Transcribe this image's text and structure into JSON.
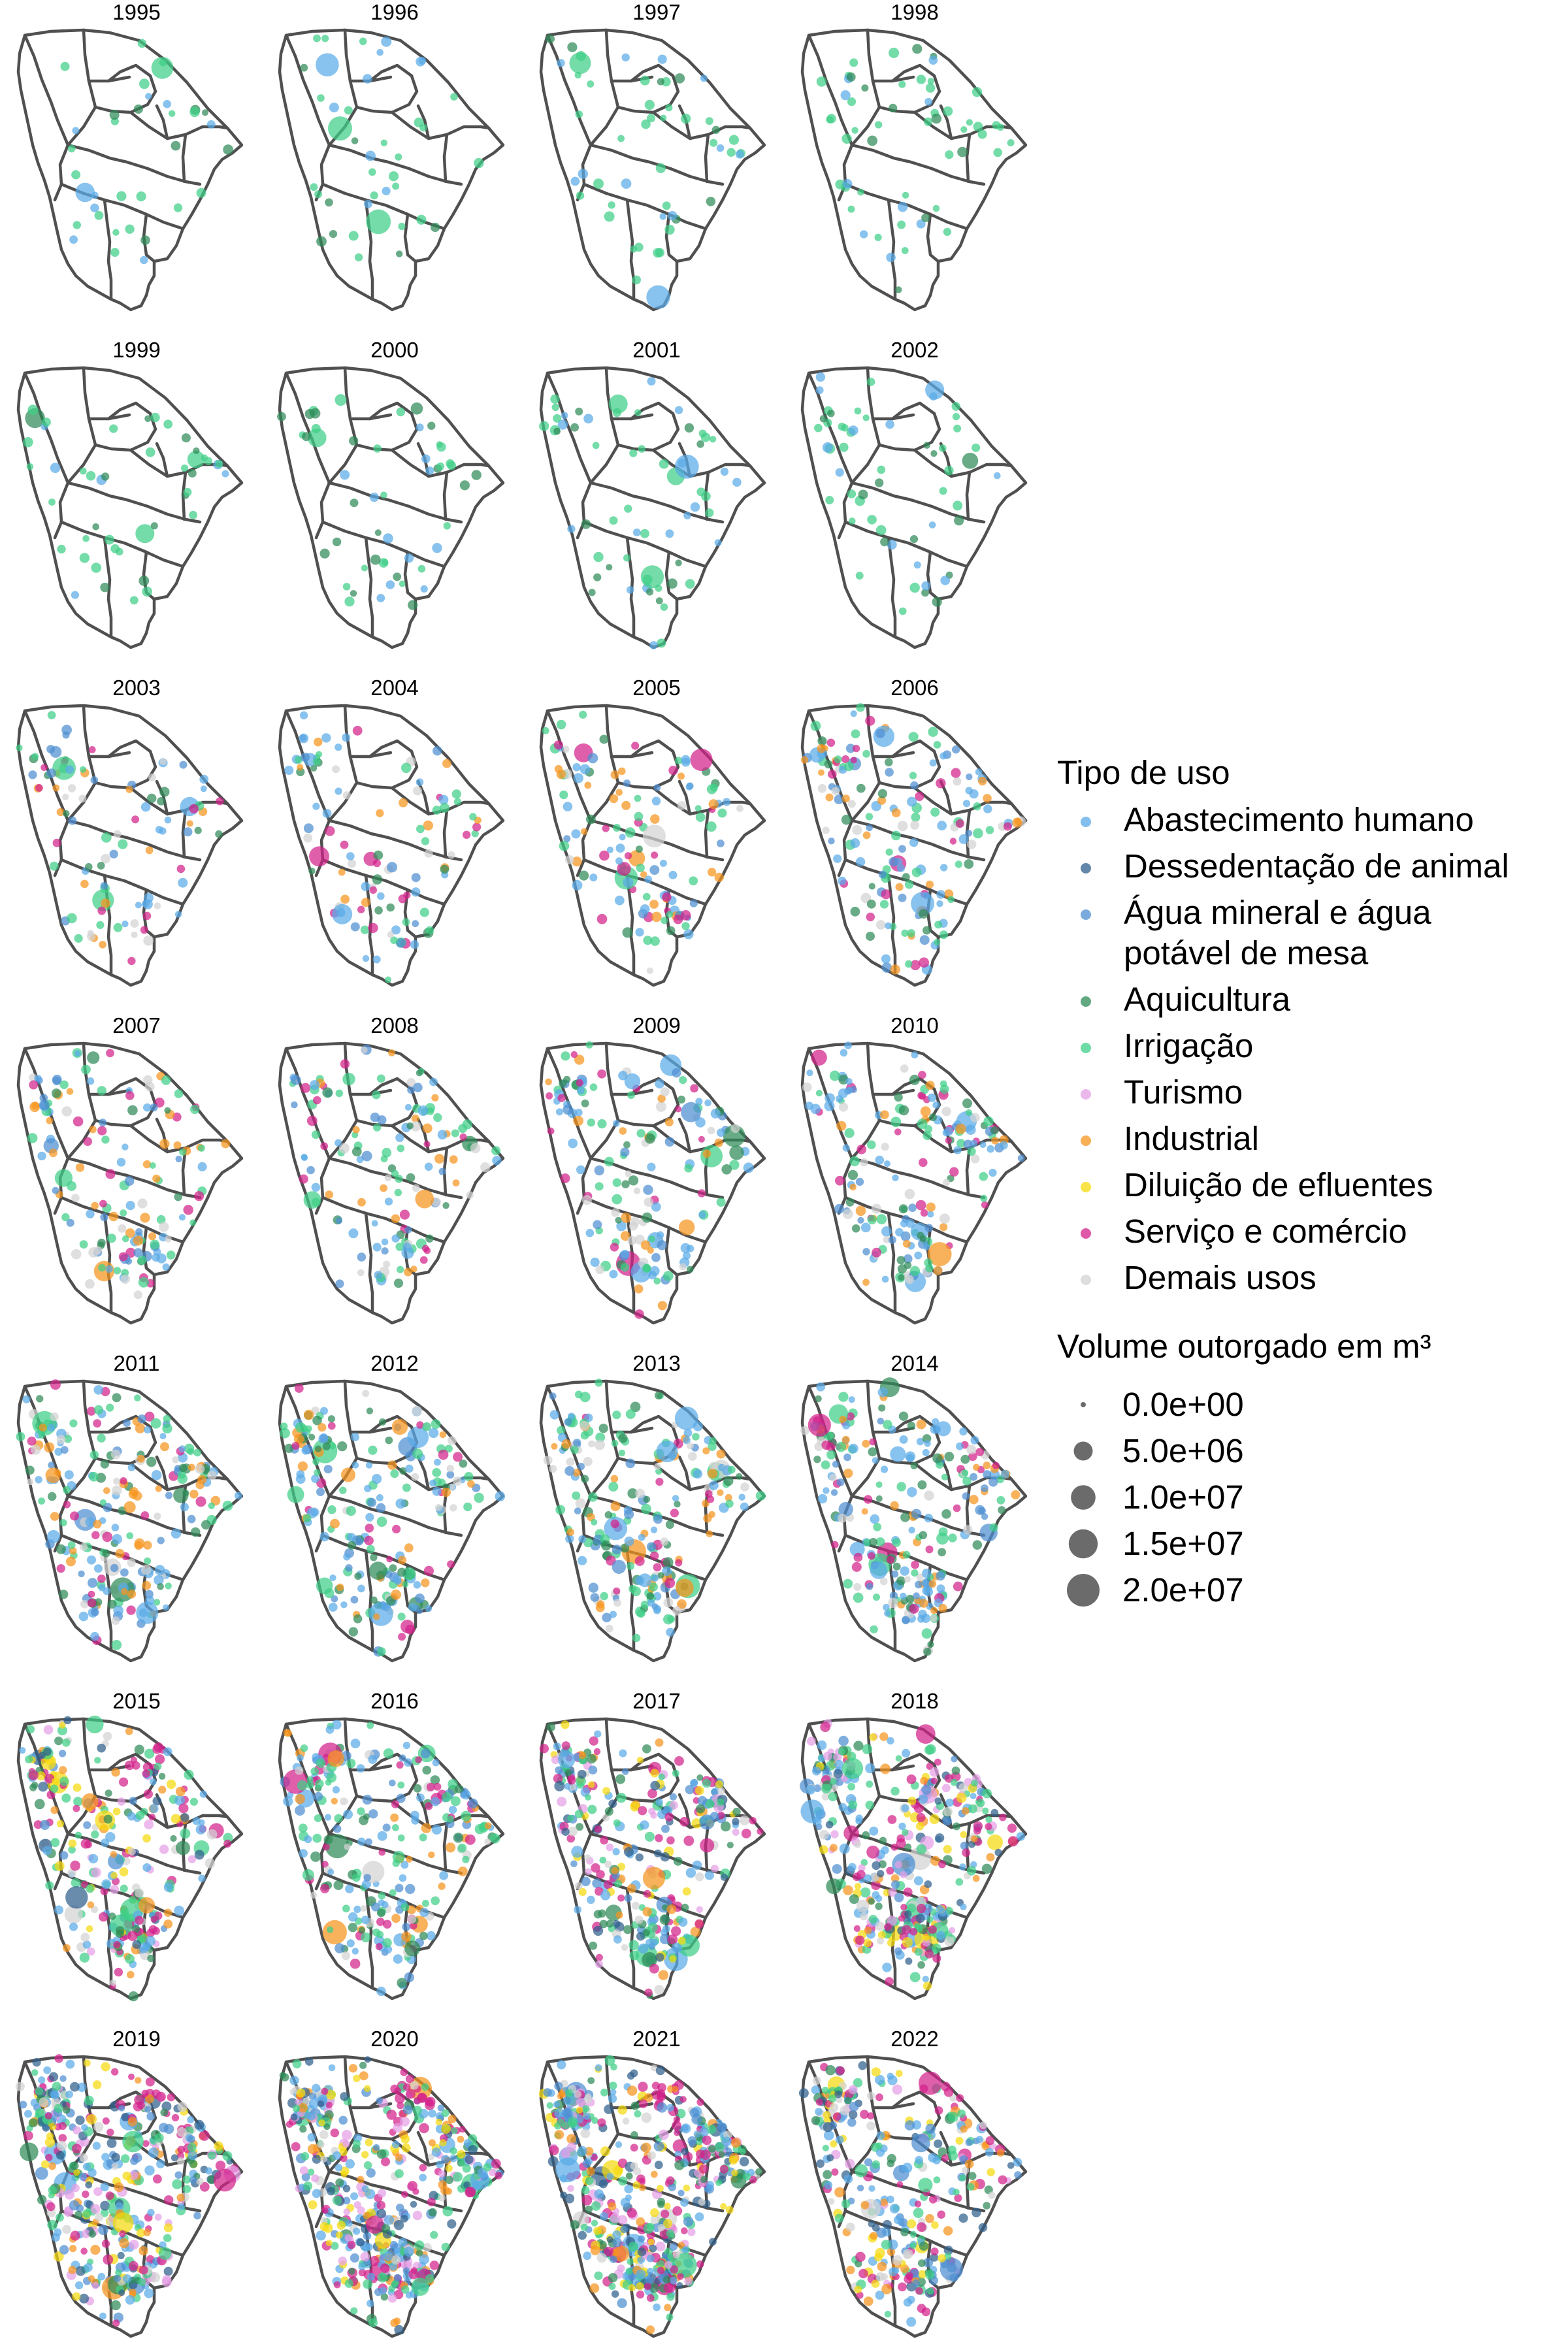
{
  "colors": {
    "abastecimento": "#5aaae8",
    "dessedentacao": "#2f5f8c",
    "agua_mineral": "#4d8fd1",
    "aquicultura": "#2e8b57",
    "irrigacao": "#3ecf86",
    "turismo": "#e4a0e6",
    "industrial": "#f7941d",
    "diluicao": "#f5d90c",
    "servico": "#d3218a",
    "demais": "#d3d3d3",
    "size_point": "#3a3a3a"
  },
  "legend": {
    "tipo_title": "Tipo de uso",
    "tipo_items": [
      {
        "key": "abastecimento",
        "lines": [
          "Abastecimento humano"
        ]
      },
      {
        "key": "dessedentacao",
        "lines": [
          "Dessedentação de animal"
        ]
      },
      {
        "key": "agua_mineral",
        "lines": [
          "Água mineral e água",
          "potável de mesa"
        ]
      },
      {
        "key": "aquicultura",
        "lines": [
          "Aquicultura"
        ]
      },
      {
        "key": "irrigacao",
        "lines": [
          "Irrigação"
        ]
      },
      {
        "key": "turismo",
        "lines": [
          "Turismo"
        ]
      },
      {
        "key": "industrial",
        "lines": [
          "Industrial"
        ]
      },
      {
        "key": "diluicao",
        "lines": [
          "Diluição de efluentes"
        ]
      },
      {
        "key": "servico",
        "lines": [
          "Serviço e comércio"
        ]
      },
      {
        "key": "demais",
        "lines": [
          "Demais usos"
        ]
      }
    ],
    "volume_title": "Volume outorgado em m³",
    "volume_items": [
      {
        "label": "0.0e+00",
        "value": 0
      },
      {
        "label": "5.0e+06",
        "value": 5000000
      },
      {
        "label": "1.0e+07",
        "value": 10000000
      },
      {
        "label": "1.5e+07",
        "value": 15000000
      },
      {
        "label": "2.0e+07",
        "value": 20000000
      }
    ]
  },
  "panels": [
    {
      "year": "1995",
      "intensity": 0.04
    },
    {
      "year": "1996",
      "intensity": 0.05
    },
    {
      "year": "1997",
      "intensity": 0.07
    },
    {
      "year": "1998",
      "intensity": 0.08
    },
    {
      "year": "1999",
      "intensity": 0.06
    },
    {
      "year": "2000",
      "intensity": 0.07
    },
    {
      "year": "2001",
      "intensity": 0.09
    },
    {
      "year": "2002",
      "intensity": 0.08
    },
    {
      "year": "2003",
      "intensity": 0.16
    },
    {
      "year": "2004",
      "intensity": 0.17
    },
    {
      "year": "2005",
      "intensity": 0.22
    },
    {
      "year": "2006",
      "intensity": 0.3
    },
    {
      "year": "2007",
      "intensity": 0.25
    },
    {
      "year": "2008",
      "intensity": 0.24
    },
    {
      "year": "2009",
      "intensity": 0.28
    },
    {
      "year": "2010",
      "intensity": 0.32
    },
    {
      "year": "2011",
      "intensity": 0.42
    },
    {
      "year": "2012",
      "intensity": 0.4
    },
    {
      "year": "2013",
      "intensity": 0.42
    },
    {
      "year": "2014",
      "intensity": 0.45
    },
    {
      "year": "2015",
      "intensity": 0.55
    },
    {
      "year": "2016",
      "intensity": 0.48
    },
    {
      "year": "2017",
      "intensity": 0.58
    },
    {
      "year": "2018",
      "intensity": 0.72
    },
    {
      "year": "2019",
      "intensity": 0.85
    },
    {
      "year": "2020",
      "intensity": 0.92
    },
    {
      "year": "2021",
      "intensity": 1.0
    },
    {
      "year": "2022",
      "intensity": 0.62
    }
  ]
}
